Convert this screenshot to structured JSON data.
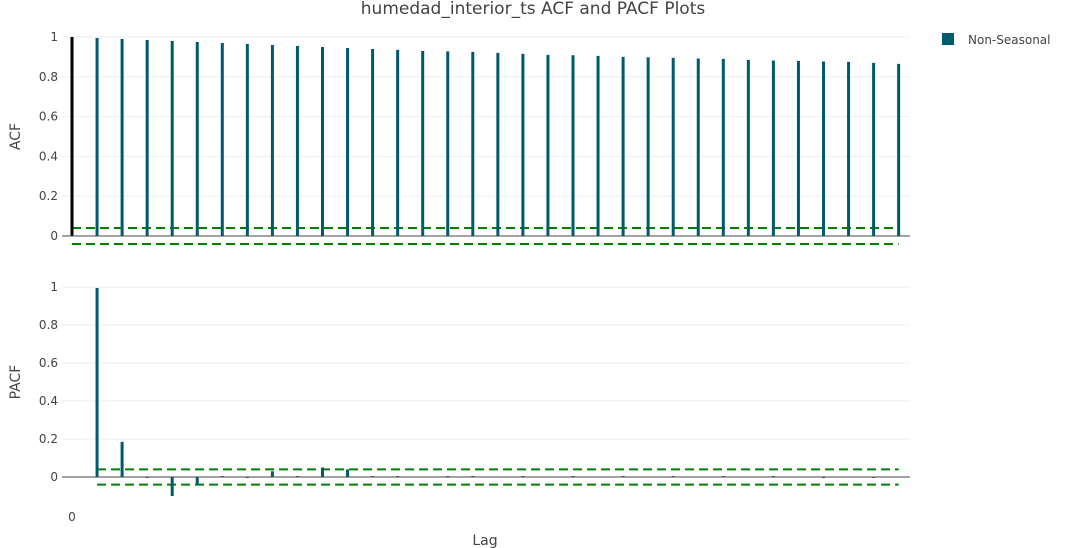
{
  "chart_data": {
    "type": "bar",
    "title": "humedad_interior_ts ACF and PACF Plots",
    "xlabel": "Lag",
    "x_tick_labels": [
      "0"
    ],
    "legend": {
      "position": "top-right",
      "entries": [
        {
          "name": "Non-Seasonal",
          "color": "#005a6e"
        }
      ]
    },
    "colors": {
      "series": "#005a6e",
      "lag0": "#000000",
      "confidence": "#008000",
      "zeroline": "#444444",
      "grid": "#eeeeee"
    },
    "grid": true,
    "panels": [
      {
        "ylabel": "ACF",
        "ylim": [
          -0.05,
          1.0
        ],
        "y_ticks": [
          0,
          0.2,
          0.4,
          0.6,
          0.8,
          1
        ],
        "y_tick_labels": [
          "0",
          "0.2",
          "0.4",
          "0.6",
          "0.8",
          "1"
        ],
        "confidence": [
          0.04,
          -0.04
        ],
        "confidence_x": [
          0,
          33
        ],
        "lags": [
          0,
          1,
          2,
          3,
          4,
          5,
          6,
          7,
          8,
          9,
          10,
          11,
          12,
          13,
          14,
          15,
          16,
          17,
          18,
          19,
          20,
          21,
          22,
          23,
          24,
          25,
          26,
          27,
          28,
          29,
          30,
          31,
          32,
          33
        ],
        "values": [
          1.0,
          0.995,
          0.99,
          0.985,
          0.98,
          0.975,
          0.97,
          0.965,
          0.96,
          0.955,
          0.95,
          0.945,
          0.94,
          0.935,
          0.93,
          0.928,
          0.925,
          0.92,
          0.915,
          0.91,
          0.908,
          0.905,
          0.9,
          0.898,
          0.895,
          0.892,
          0.89,
          0.885,
          0.882,
          0.88,
          0.877,
          0.875,
          0.87,
          0.865
        ]
      },
      {
        "ylabel": "PACF",
        "ylim": [
          -0.12,
          1.0
        ],
        "y_ticks": [
          0,
          0.2,
          0.4,
          0.6,
          0.8,
          1
        ],
        "y_tick_labels": [
          "0",
          "0.2",
          "0.4",
          "0.6",
          "0.8",
          "1"
        ],
        "confidence": [
          0.04,
          -0.04
        ],
        "confidence_x": [
          1,
          33
        ],
        "lags": [
          1,
          2,
          3,
          4,
          5,
          6,
          7,
          8,
          9,
          10,
          11,
          12,
          13,
          14,
          15,
          16,
          17,
          18,
          19,
          20,
          21,
          22,
          23,
          24,
          25,
          26,
          27,
          28,
          29,
          30,
          31,
          32,
          33
        ],
        "values": [
          0.995,
          0.185,
          -0.005,
          -0.1,
          -0.04,
          0.005,
          -0.005,
          0.03,
          0.005,
          0.05,
          0.04,
          0.005,
          0.005,
          0.0,
          0.005,
          0.005,
          0.0,
          0.005,
          0.0,
          0.005,
          0.0,
          0.005,
          0.0,
          0.005,
          0.0,
          0.005,
          0.0,
          0.005,
          0.0,
          -0.005,
          0.0,
          -0.005,
          0.0
        ]
      }
    ]
  }
}
